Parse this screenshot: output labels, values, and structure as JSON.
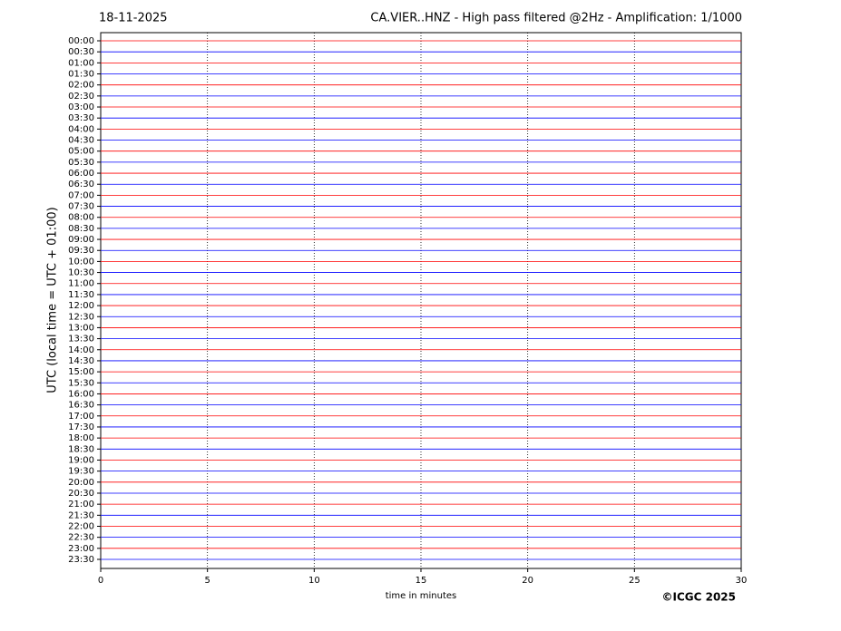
{
  "chart_data": {
    "type": "helicorder",
    "date": "18-11-2025",
    "title": "CA.VIER..HNZ - High pass filtered @2Hz - Amplification: 1/1000",
    "ylabel": "UTC (local time = UTC + 01:00)",
    "xlabel": "time in minutes",
    "copyright": "©ICGC 2025",
    "categories": [
      "00:00",
      "00:30",
      "01:00",
      "01:30",
      "02:00",
      "02:30",
      "03:00",
      "03:30",
      "04:00",
      "04:30",
      "05:00",
      "05:30",
      "06:00",
      "06:30",
      "07:00",
      "07:30",
      "08:00",
      "08:30",
      "09:00",
      "09:30",
      "10:00",
      "10:30",
      "11:00",
      "11:30",
      "12:00",
      "12:30",
      "13:00",
      "13:30",
      "14:00",
      "14:30",
      "15:00",
      "15:30",
      "16:00",
      "16:30",
      "17:00",
      "17:30",
      "18:00",
      "18:30",
      "19:00",
      "19:30",
      "20:00",
      "20:30",
      "21:00",
      "21:30",
      "22:00",
      "22:30",
      "23:00",
      "23:30"
    ],
    "colors": [
      "#ff0000",
      "#0000ff"
    ],
    "xlim": [
      0,
      30
    ],
    "xticks": [
      0,
      5,
      10,
      15,
      20,
      25,
      30
    ],
    "grid": true
  }
}
